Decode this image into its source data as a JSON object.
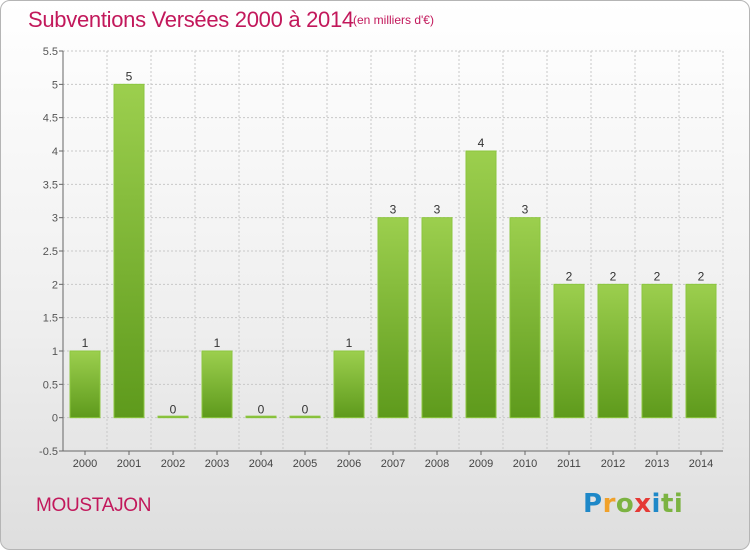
{
  "header": {
    "title": "Subventions Versées 2000 à 2014",
    "subtitle": "(en milliers d'€)"
  },
  "footer": {
    "place": "MOUSTAJON",
    "logo": "Proxiti"
  },
  "colors": {
    "accent": "#c2185b",
    "bar_light": "#9ccf4e",
    "bar_dark": "#5e9a1c"
  },
  "chart_data": {
    "type": "bar",
    "title": "Subventions Versées 2000 à 2014",
    "subtitle": "(en milliers d'€)",
    "xlabel": "",
    "ylabel": "",
    "categories": [
      "2000",
      "2001",
      "2002",
      "2003",
      "2004",
      "2005",
      "2006",
      "2007",
      "2008",
      "2009",
      "2010",
      "2011",
      "2012",
      "2013",
      "2014"
    ],
    "values": [
      1,
      5,
      0,
      1,
      0,
      0,
      1,
      3,
      3,
      4,
      3,
      2,
      2,
      2,
      2
    ],
    "ylim": [
      -0.5,
      5.5
    ],
    "yticks": [
      "-0.5",
      "0",
      "0.5",
      "1",
      "1.5",
      "2",
      "2.5",
      "3",
      "3.5",
      "4",
      "4.5",
      "5",
      "5.5"
    ],
    "grid": true,
    "legend": "none"
  }
}
